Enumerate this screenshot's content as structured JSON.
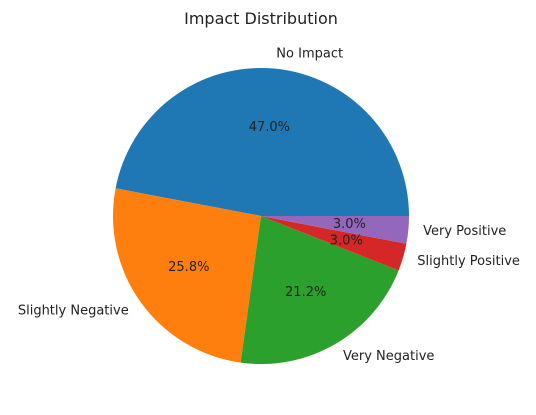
{
  "chart_data": {
    "type": "pie",
    "title": "Impact Distribution",
    "labels": [
      "No Impact",
      "Slightly Negative",
      "Very Negative",
      "Slightly Positive",
      "Very Positive"
    ],
    "values": [
      47.0,
      25.8,
      21.2,
      3.0,
      3.0
    ],
    "autopct": [
      "47.0%",
      "25.8%",
      "21.2%",
      "3.0%",
      "3.0%"
    ],
    "colors": [
      "#1f77b4",
      "#ff7f0e",
      "#2ca02c",
      "#d62728",
      "#9467bd"
    ]
  }
}
